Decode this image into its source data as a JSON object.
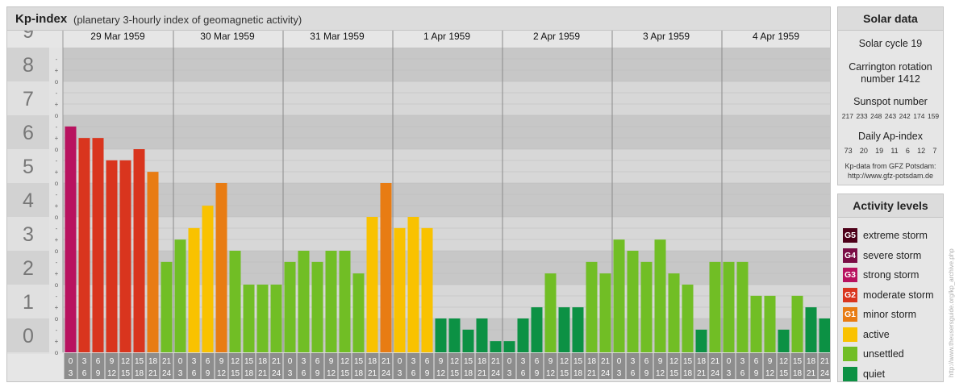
{
  "header": {
    "title": "Kp-index",
    "subtitle": "(planetary 3-hourly index of geomagnetic activity)"
  },
  "chart_data": {
    "type": "bar",
    "ylim": [
      0,
      9
    ],
    "y_ticks": [
      "0",
      "1",
      "2",
      "3",
      "4",
      "5",
      "6",
      "7",
      "8",
      "9"
    ],
    "minor_ticks": [
      "o",
      "+",
      "-"
    ],
    "days": [
      "29 Mar 1959",
      "30 Mar 1959",
      "31 Mar 1959",
      "1 Apr 1959",
      "2 Apr 1959",
      "3 Apr 1959",
      "4 Apr 1959"
    ],
    "interval_labels": [
      [
        "0",
        "3"
      ],
      [
        "3",
        "6"
      ],
      [
        "6",
        "9"
      ],
      [
        "9",
        "12"
      ],
      [
        "12",
        "15"
      ],
      [
        "15",
        "18"
      ],
      [
        "18",
        "21"
      ],
      [
        "21",
        "24"
      ]
    ],
    "values": [
      6.67,
      6.33,
      6.33,
      5.67,
      5.67,
      6.0,
      5.33,
      2.67,
      3.33,
      3.67,
      4.33,
      5.0,
      3.0,
      2.0,
      2.0,
      2.0,
      2.67,
      3.0,
      2.67,
      3.0,
      3.0,
      2.33,
      4.0,
      5.0,
      3.67,
      4.0,
      3.67,
      1.0,
      1.0,
      0.67,
      1.0,
      0.33,
      0.33,
      1.0,
      1.33,
      2.33,
      1.33,
      1.33,
      2.67,
      2.33,
      3.33,
      3.0,
      2.67,
      3.33,
      2.33,
      2.0,
      0.67,
      2.67,
      2.67,
      2.67,
      1.67,
      1.67,
      0.67,
      1.67,
      1.33,
      1.0
    ],
    "bar_colors": {
      "quiet": "#0c9144",
      "unsettled": "#71be25",
      "active": "#f9c200",
      "G1": "#e87c13",
      "G2": "#d9351e",
      "G3": "#b8125f",
      "G4": "#7a0d45",
      "G5": "#4d0019"
    }
  },
  "solar": {
    "title": "Solar data",
    "cycle": "Solar cycle 19",
    "carrington_1": "Carrington rotation",
    "carrington_2": "number 1412",
    "sunspot_label": "Sunspot number",
    "sunspot_values": [
      "217",
      "233",
      "248",
      "243",
      "242",
      "174",
      "159"
    ],
    "ap_label": "Daily Ap-index",
    "ap_values": [
      "73",
      "20",
      "19",
      "11",
      "6",
      "12",
      "7"
    ],
    "source_1": "Kp-data from GFZ Potsdam:",
    "source_2": "http://www.gfz-potsdam.de"
  },
  "levels": {
    "title": "Activity levels",
    "items": [
      {
        "badge": "G5",
        "label": "extreme storm",
        "color": "#4d0019"
      },
      {
        "badge": "G4",
        "label": "severe storm",
        "color": "#7a0d45"
      },
      {
        "badge": "G3",
        "label": "strong storm",
        "color": "#b8125f"
      },
      {
        "badge": "G2",
        "label": "moderate storm",
        "color": "#d9351e"
      },
      {
        "badge": "G1",
        "label": "minor storm",
        "color": "#e87c13"
      },
      {
        "badge": "",
        "label": "active",
        "color": "#f9c200"
      },
      {
        "badge": "",
        "label": "unsettled",
        "color": "#71be25"
      },
      {
        "badge": "",
        "label": "quiet",
        "color": "#0c9144"
      }
    ]
  },
  "watermark": "http://www.theusersguide.org/kp_archive.php"
}
